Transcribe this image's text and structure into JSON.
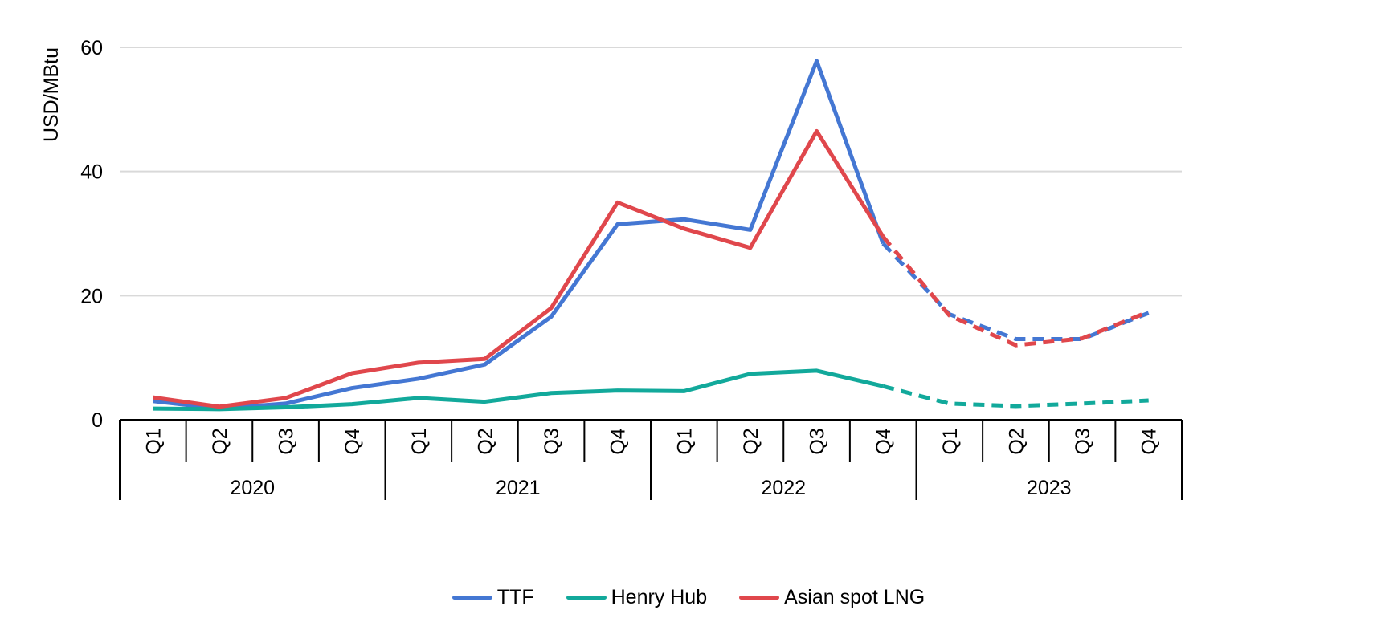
{
  "chart_data": {
    "type": "line",
    "ylabel": "USD/MBtu",
    "xlabel": "",
    "ylim": [
      0,
      60
    ],
    "yticks": [
      0,
      20,
      40,
      60
    ],
    "grid": true,
    "legend_position": "bottom",
    "x_quarters": [
      "Q1",
      "Q2",
      "Q3",
      "Q4",
      "Q1",
      "Q2",
      "Q3",
      "Q4",
      "Q1",
      "Q2",
      "Q3",
      "Q4",
      "Q1",
      "Q2",
      "Q3",
      "Q4"
    ],
    "x_years": [
      {
        "label": "2020",
        "span": 4
      },
      {
        "label": "2021",
        "span": 4
      },
      {
        "label": "2022",
        "span": 4
      },
      {
        "label": "2023",
        "span": 4
      }
    ],
    "forecast_from_index": 11,
    "series": [
      {
        "name": "TTF",
        "color": "#4477d3",
        "values": [
          3.0,
          1.8,
          2.6,
          5.1,
          6.6,
          8.9,
          16.6,
          31.5,
          32.3,
          30.6,
          57.8,
          28.4,
          17.0,
          13.0,
          13.0,
          17.2
        ]
      },
      {
        "name": "Henry Hub",
        "color": "#12a99b",
        "values": [
          1.8,
          1.7,
          2.0,
          2.5,
          3.5,
          2.9,
          4.3,
          4.7,
          4.6,
          7.4,
          7.9,
          5.4,
          2.6,
          2.2,
          2.6,
          3.1
        ]
      },
      {
        "name": "Asian spot LNG",
        "color": "#e0474c",
        "values": [
          3.6,
          2.1,
          3.5,
          7.5,
          9.2,
          9.8,
          18.0,
          35.0,
          30.8,
          27.7,
          46.5,
          29.5,
          16.8,
          12.0,
          13.1,
          17.4
        ]
      }
    ]
  }
}
